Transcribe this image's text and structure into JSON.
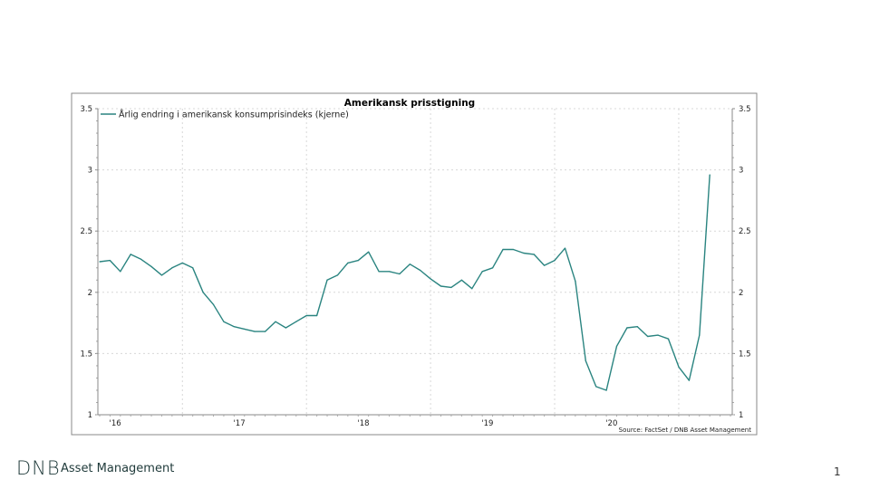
{
  "footer": {
    "logo": "DNB",
    "company": "Asset Management",
    "page_number": "1"
  },
  "chart_data": {
    "type": "line",
    "title": "Amerikansk prisstigning",
    "source": "Source: FactSet / DNB Asset Management",
    "xlabel": "",
    "ylabel": "",
    "ylim": [
      1,
      3.5
    ],
    "yticks": [
      "1",
      "1.5",
      "2",
      "2.5",
      "3",
      "3.5"
    ],
    "xticks": [
      "'16",
      "'17",
      "'18",
      "'19",
      "'20"
    ],
    "grid": true,
    "legend_position": "top-left",
    "x_start": "2016-05",
    "x_end": "2021-04",
    "frequency": "monthly",
    "series": [
      {
        "name": "Årlig endring i amerikansk konsumprisindeks (kjerne)",
        "color": "#2a8480",
        "values": [
          2.25,
          2.26,
          2.17,
          2.31,
          2.27,
          2.21,
          2.14,
          2.2,
          2.24,
          2.2,
          2.0,
          1.9,
          1.76,
          1.72,
          1.7,
          1.68,
          1.68,
          1.76,
          1.71,
          1.76,
          1.81,
          1.81,
          2.1,
          2.14,
          2.24,
          2.26,
          2.33,
          2.17,
          2.17,
          2.15,
          2.23,
          2.18,
          2.11,
          2.05,
          2.04,
          2.1,
          2.03,
          2.17,
          2.2,
          2.35,
          2.35,
          2.32,
          2.31,
          2.22,
          2.26,
          2.36,
          2.09,
          1.44,
          1.23,
          1.2,
          1.56,
          1.71,
          1.72,
          1.64,
          1.65,
          1.62,
          1.39,
          1.28,
          1.65,
          2.96
        ]
      }
    ]
  }
}
